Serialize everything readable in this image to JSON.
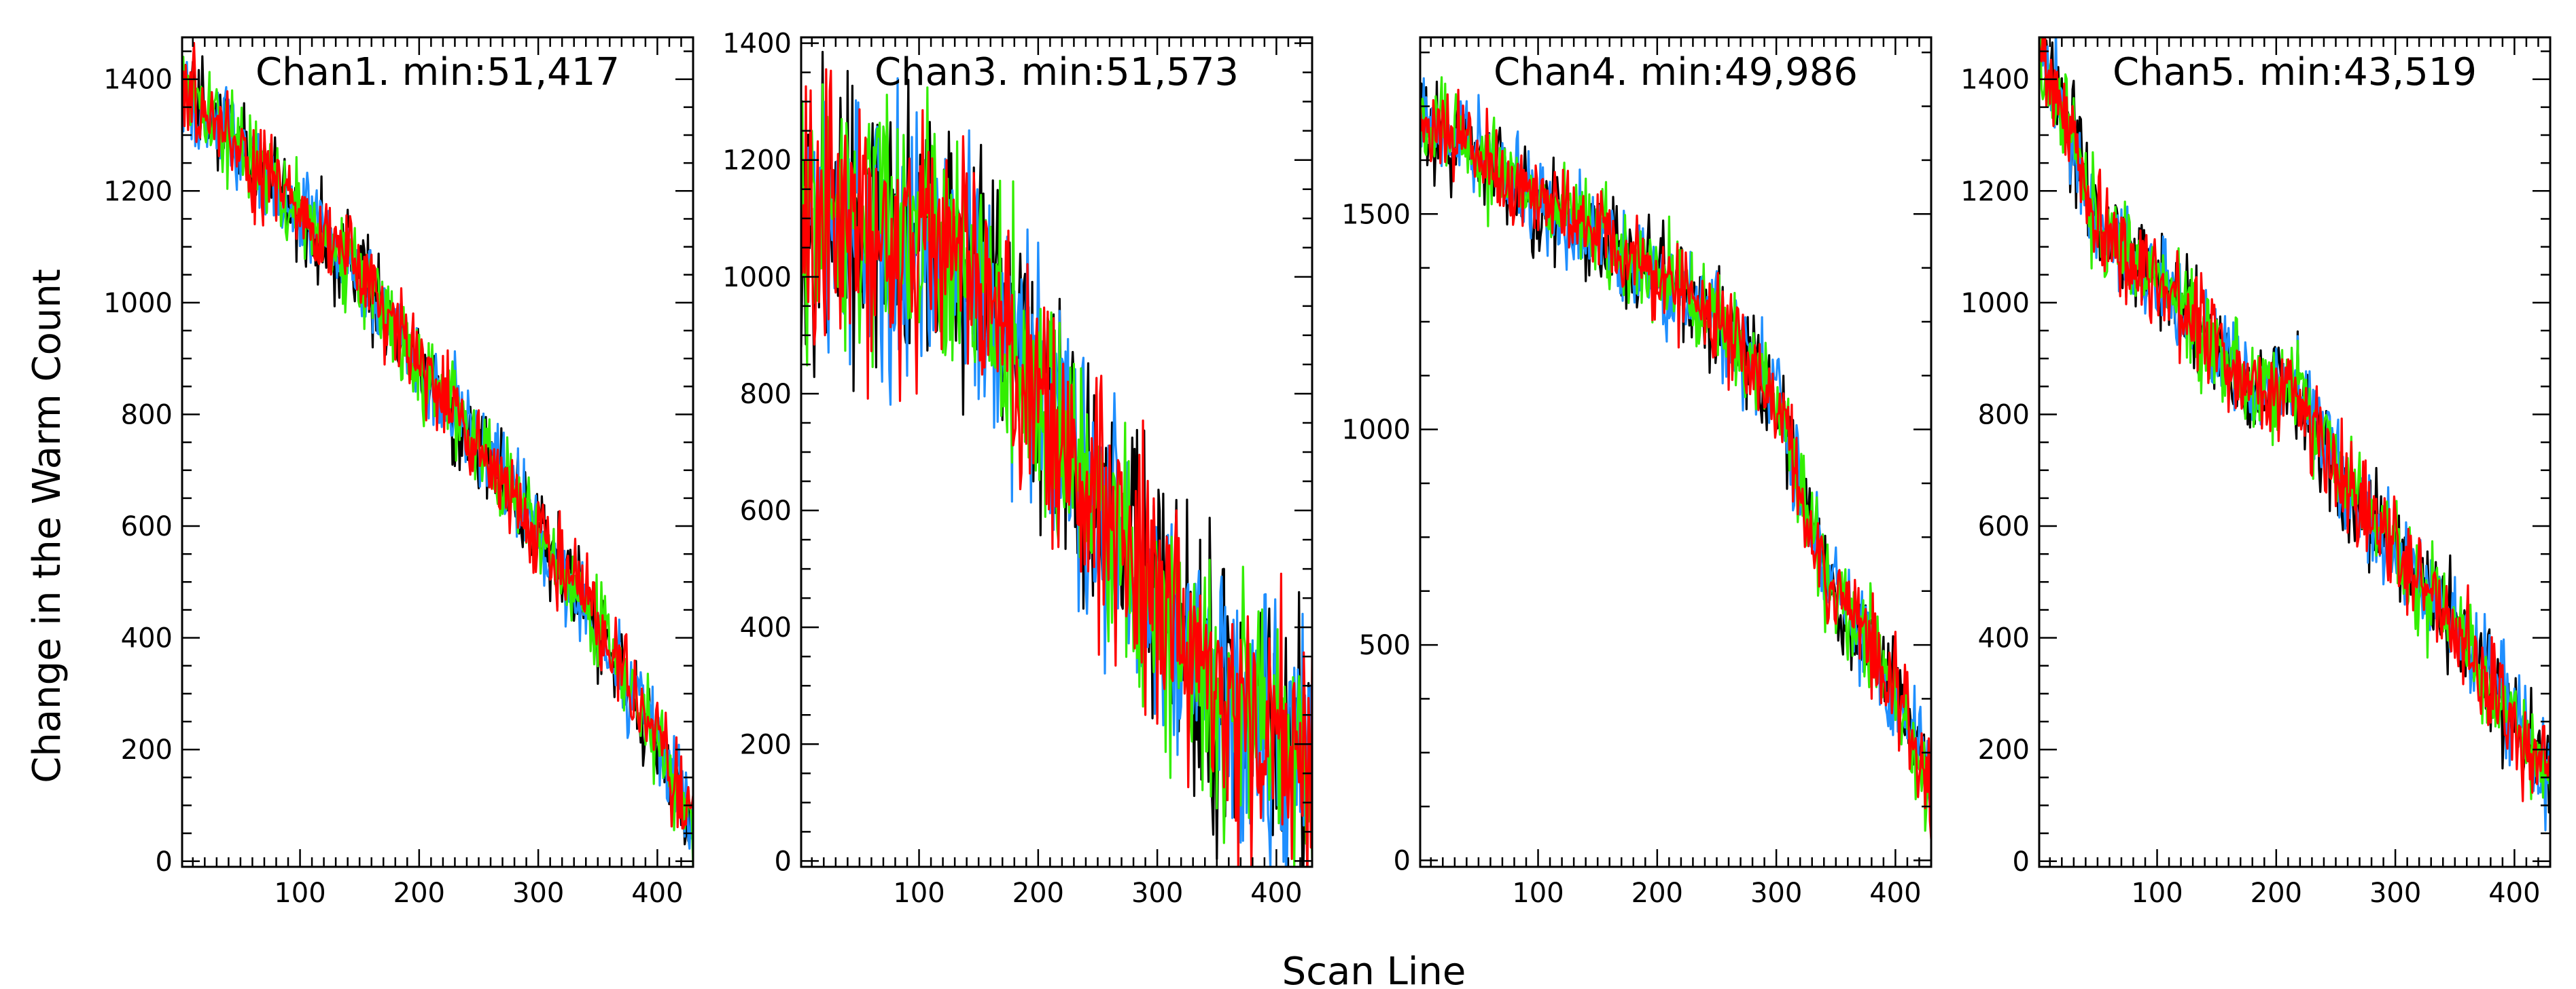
{
  "chart_data": {
    "type": "line",
    "xlabel": "Scan Line",
    "ylabel": "Change in the Warm Count",
    "series_colors": [
      "#000000",
      "#1f8fff",
      "#33ee00",
      "#ff0000"
    ],
    "panels": [
      {
        "title": "Chan1. min:51,417",
        "xlim": [
          1,
          430
        ],
        "ylim": [
          -10,
          1475
        ],
        "xticks": [
          100,
          200,
          300,
          400
        ],
        "yticks": [
          0,
          200,
          400,
          600,
          800,
          1000,
          1200,
          1400
        ],
        "trend": [
          [
            1,
            1385
          ],
          [
            50,
            1270
          ],
          [
            100,
            1160
          ],
          [
            150,
            1050
          ],
          [
            200,
            890
          ],
          [
            250,
            740
          ],
          [
            300,
            590
          ],
          [
            350,
            420
          ],
          [
            400,
            220
          ],
          [
            430,
            60
          ]
        ],
        "noise": 40
      },
      {
        "title": "Chan3. min:51,573",
        "xlim": [
          1,
          430
        ],
        "ylim": [
          -10,
          1410
        ],
        "xticks": [
          100,
          200,
          300,
          400
        ],
        "yticks": [
          0,
          200,
          400,
          600,
          800,
          1000,
          1200,
          1400
        ],
        "trend": [
          [
            1,
            1100
          ],
          [
            50,
            1090
          ],
          [
            100,
            1060
          ],
          [
            150,
            1000
          ],
          [
            200,
            800
          ],
          [
            250,
            620
          ],
          [
            300,
            450
          ],
          [
            350,
            280
          ],
          [
            400,
            220
          ],
          [
            430,
            150
          ]
        ],
        "noise": 110
      },
      {
        "title": "Chan4. min:49,986",
        "xlim": [
          1,
          430
        ],
        "ylim": [
          -15,
          1910
        ],
        "xticks": [
          100,
          200,
          300,
          400
        ],
        "yticks": [
          0,
          500,
          1000,
          1500
        ],
        "trend": [
          [
            1,
            1720
          ],
          [
            50,
            1650
          ],
          [
            100,
            1520
          ],
          [
            150,
            1460
          ],
          [
            200,
            1360
          ],
          [
            250,
            1260
          ],
          [
            300,
            1070
          ],
          [
            330,
            760
          ],
          [
            350,
            620
          ],
          [
            400,
            400
          ],
          [
            430,
            150
          ]
        ],
        "noise": 55
      },
      {
        "title": "Chan5. min:43,519",
        "xlim": [
          1,
          430
        ],
        "ylim": [
          -10,
          1475
        ],
        "xticks": [
          100,
          200,
          300,
          400
        ],
        "yticks": [
          0,
          200,
          400,
          600,
          800,
          1000,
          1200,
          1400
        ],
        "trend": [
          [
            1,
            1450
          ],
          [
            30,
            1300
          ],
          [
            50,
            1130
          ],
          [
            100,
            1040
          ],
          [
            150,
            920
          ],
          [
            180,
            840
          ],
          [
            220,
            850
          ],
          [
            250,
            700
          ],
          [
            300,
            560
          ],
          [
            350,
            420
          ],
          [
            400,
            250
          ],
          [
            430,
            150
          ]
        ],
        "noise": 45
      }
    ]
  }
}
